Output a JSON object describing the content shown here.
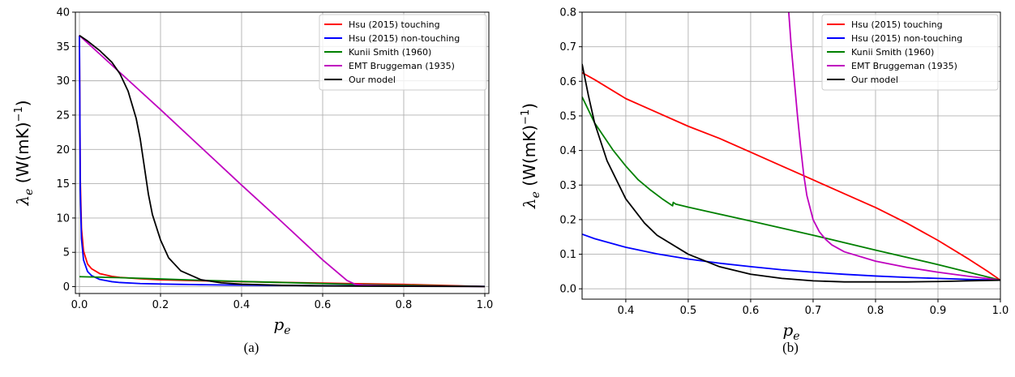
{
  "chart_data": [
    {
      "type": "line",
      "caption": "(a)",
      "xlabel": "p_e",
      "ylabel": "λ_e (W(mK)^−1)",
      "xlim": [
        -0.01,
        1.01
      ],
      "ylim": [
        -1,
        40
      ],
      "xticks": [
        "0.0",
        "0.2",
        "0.4",
        "0.6",
        "0.8",
        "1.0"
      ],
      "yticks": [
        "0",
        "5",
        "10",
        "15",
        "20",
        "25",
        "30",
        "35",
        "40"
      ],
      "grid": true,
      "legend_position": "top-right",
      "series": [
        {
          "name": "Hsu (2015) touching",
          "color": "#ff0000",
          "x": [
            0.0,
            0.002,
            0.005,
            0.01,
            0.02,
            0.03,
            0.05,
            0.08,
            0.1,
            0.15,
            0.2,
            0.3,
            0.4,
            0.5,
            0.6,
            0.7,
            0.8,
            0.9,
            1.0
          ],
          "y": [
            36.6,
            16.0,
            8.5,
            5.2,
            3.3,
            2.6,
            1.9,
            1.5,
            1.35,
            1.15,
            1.0,
            0.85,
            0.72,
            0.62,
            0.52,
            0.42,
            0.32,
            0.18,
            0.02
          ]
        },
        {
          "name": "Hsu (2015) non-touching",
          "color": "#0000ff",
          "x": [
            0.0,
            0.002,
            0.005,
            0.01,
            0.02,
            0.03,
            0.05,
            0.08,
            0.1,
            0.15,
            0.2,
            0.3,
            0.4,
            0.5,
            0.6,
            0.7,
            0.8,
            0.9,
            1.0
          ],
          "y": [
            36.6,
            14.0,
            7.0,
            3.9,
            2.2,
            1.6,
            1.05,
            0.72,
            0.6,
            0.45,
            0.38,
            0.28,
            0.22,
            0.17,
            0.14,
            0.11,
            0.09,
            0.07,
            0.03
          ]
        },
        {
          "name": "Kunii Smith (1960)",
          "color": "#008000",
          "x": [
            0.0,
            0.1,
            0.2,
            0.3,
            0.4,
            0.5,
            0.6,
            0.7,
            0.8,
            0.9,
            1.0
          ],
          "y": [
            1.45,
            1.3,
            1.12,
            0.92,
            0.75,
            0.6,
            0.45,
            0.3,
            0.2,
            0.1,
            0.02
          ]
        },
        {
          "name": "EMT Bruggeman (1935)",
          "color": "#bf00bf",
          "x": [
            0.0,
            0.1,
            0.2,
            0.3,
            0.4,
            0.5,
            0.6,
            0.66,
            0.68,
            0.7,
            0.75,
            0.8,
            0.9,
            1.0
          ],
          "y": [
            36.6,
            31.2,
            25.8,
            20.3,
            14.8,
            9.4,
            3.9,
            0.9,
            0.35,
            0.22,
            0.12,
            0.08,
            0.05,
            0.02
          ]
        },
        {
          "name": "Our model",
          "color": "#000000",
          "x": [
            0.0,
            0.02,
            0.05,
            0.08,
            0.1,
            0.12,
            0.14,
            0.15,
            0.16,
            0.165,
            0.17,
            0.18,
            0.2,
            0.22,
            0.25,
            0.3,
            0.35,
            0.4,
            0.5,
            0.6,
            0.7,
            0.8,
            0.9,
            1.0
          ],
          "y": [
            36.6,
            35.8,
            34.4,
            32.7,
            31.0,
            28.5,
            24.5,
            21.5,
            17.5,
            15.5,
            13.5,
            10.5,
            6.8,
            4.2,
            2.3,
            1.0,
            0.55,
            0.35,
            0.2,
            0.12,
            0.08,
            0.05,
            0.03,
            0.02
          ]
        }
      ]
    },
    {
      "type": "line",
      "caption": "(b)",
      "xlabel": "p_e",
      "ylabel": "λ_e (W(mK)^−1)",
      "xlim": [
        0.33,
        1.0
      ],
      "ylim": [
        -0.03,
        0.8
      ],
      "xticks": [
        "0.4",
        "0.5",
        "0.6",
        "0.7",
        "0.8",
        "0.9",
        "1.0"
      ],
      "yticks": [
        "0.0",
        "0.1",
        "0.2",
        "0.3",
        "0.4",
        "0.5",
        "0.6",
        "0.7",
        "0.8"
      ],
      "grid": true,
      "legend_position": "top-right",
      "series": [
        {
          "name": "Hsu (2015) touching",
          "color": "#ff0000",
          "x": [
            0.33,
            0.35,
            0.4,
            0.45,
            0.5,
            0.55,
            0.6,
            0.65,
            0.7,
            0.75,
            0.8,
            0.85,
            0.9,
            0.95,
            0.98,
            1.0
          ],
          "y": [
            0.625,
            0.605,
            0.55,
            0.51,
            0.47,
            0.435,
            0.395,
            0.355,
            0.315,
            0.275,
            0.235,
            0.19,
            0.14,
            0.085,
            0.05,
            0.025
          ]
        },
        {
          "name": "Hsu (2015) non-touching",
          "color": "#0000ff",
          "x": [
            0.33,
            0.35,
            0.4,
            0.45,
            0.5,
            0.55,
            0.6,
            0.65,
            0.7,
            0.75,
            0.8,
            0.85,
            0.9,
            0.95,
            1.0
          ],
          "y": [
            0.158,
            0.145,
            0.12,
            0.101,
            0.086,
            0.074,
            0.064,
            0.055,
            0.048,
            0.042,
            0.037,
            0.033,
            0.03,
            0.027,
            0.025
          ]
        },
        {
          "name": "Kunii Smith (1960)",
          "color": "#008000",
          "x": [
            0.33,
            0.35,
            0.38,
            0.4,
            0.42,
            0.44,
            0.46,
            0.475,
            0.476,
            0.48,
            0.5,
            0.6,
            0.7,
            0.8,
            0.9,
            1.0
          ],
          "y": [
            0.555,
            0.48,
            0.4,
            0.355,
            0.315,
            0.285,
            0.258,
            0.24,
            0.25,
            0.245,
            0.236,
            0.196,
            0.155,
            0.112,
            0.07,
            0.025
          ]
        },
        {
          "name": "EMT Bruggeman (1935)",
          "color": "#bf00bf",
          "x": [
            0.661,
            0.665,
            0.67,
            0.675,
            0.68,
            0.685,
            0.69,
            0.7,
            0.71,
            0.72,
            0.73,
            0.75,
            0.8,
            0.85,
            0.9,
            0.95,
            1.0
          ],
          "y": [
            0.8,
            0.7,
            0.6,
            0.5,
            0.41,
            0.33,
            0.27,
            0.2,
            0.165,
            0.143,
            0.127,
            0.107,
            0.08,
            0.062,
            0.048,
            0.036,
            0.025
          ]
        },
        {
          "name": "Our model",
          "color": "#000000",
          "x": [
            0.33,
            0.34,
            0.35,
            0.37,
            0.4,
            0.43,
            0.45,
            0.5,
            0.55,
            0.6,
            0.65,
            0.7,
            0.75,
            0.8,
            0.85,
            0.9,
            0.95,
            1.0
          ],
          "y": [
            0.65,
            0.56,
            0.48,
            0.37,
            0.26,
            0.19,
            0.155,
            0.1,
            0.064,
            0.042,
            0.03,
            0.023,
            0.02,
            0.02,
            0.02,
            0.021,
            0.023,
            0.025
          ]
        }
      ]
    }
  ]
}
